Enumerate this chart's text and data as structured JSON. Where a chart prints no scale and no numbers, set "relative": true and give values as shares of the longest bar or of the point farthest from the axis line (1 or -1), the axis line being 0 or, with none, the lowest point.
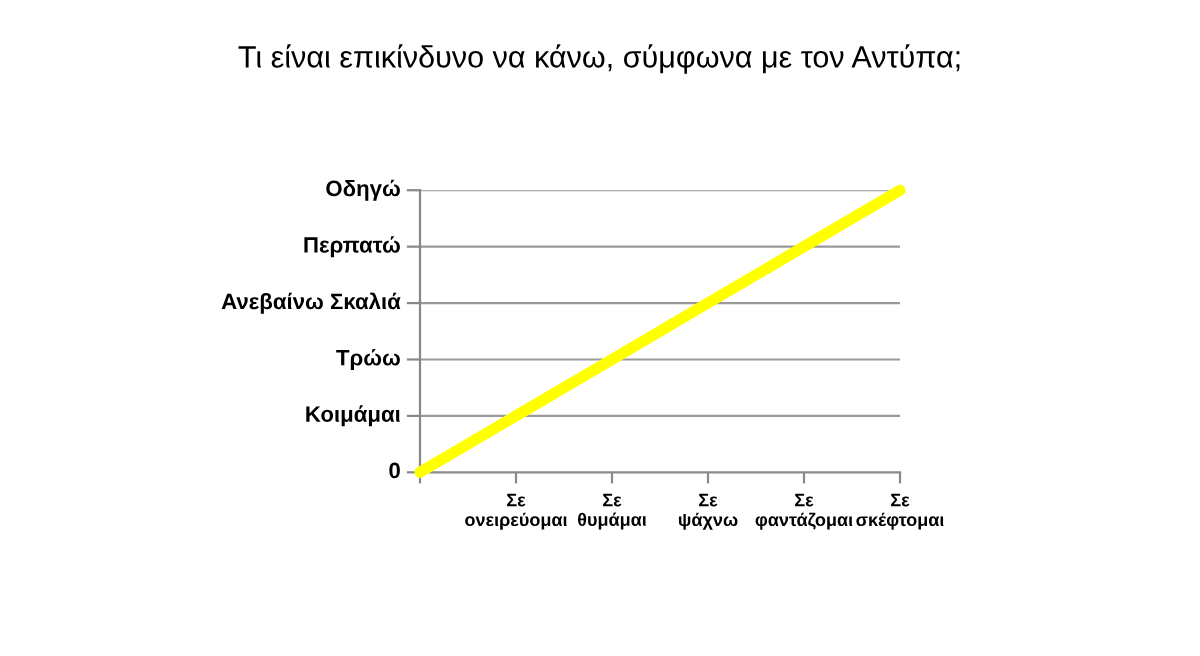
{
  "chart_data": {
    "type": "line",
    "title": "Τι είναι επικίνδυνο να κάνω, σύμφωνα με τον Αντύπα;",
    "categories": [
      null,
      "Σε\nονειρεύομαι",
      "Σε\nθυμάμαι",
      "Σε\nψάχνω",
      "Σε\nφαντάζομαι",
      "Σε\nσκέφτομαι"
    ],
    "relative": true,
    "series": [
      {
        "color": "#ffff00",
        "values": [
          0,
          0.2,
          0.4,
          0.6,
          0.8,
          1
        ]
      }
    ],
    "annotations": [
      "0",
      "Κοιμάμαι",
      "Τρώω",
      "Ανεβαίνω Σκαλιά",
      "Περπατώ",
      "Οδηγώ"
    ],
    "grid": "y",
    "legend": false,
    "marker": "none",
    "line_style": "solid"
  }
}
